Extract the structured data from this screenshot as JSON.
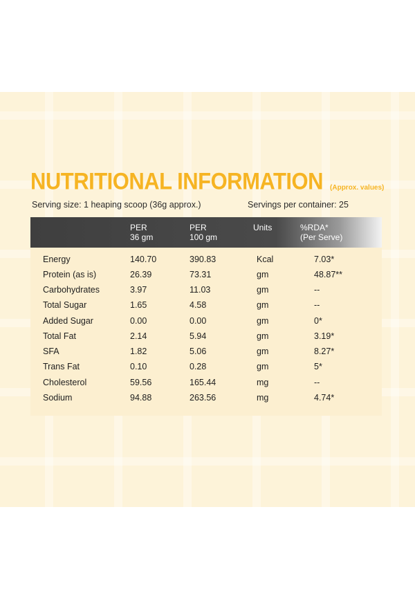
{
  "title": "NUTRITIONAL INFORMATION",
  "subtitle": "(Approx. values)",
  "serving_size": "Serving size: 1 heaping scoop (36g approx.)",
  "servings_per_container": "Servings per container: 25",
  "colors": {
    "accent": "#f6b423",
    "header_bg": "#3f3f3f",
    "panel_bg": "#fdf3d9"
  },
  "table": {
    "headers": [
      {
        "line1": "",
        "line2": ""
      },
      {
        "line1": "PER",
        "line2": "36 gm"
      },
      {
        "line1": "PER",
        "line2": "100 gm"
      },
      {
        "line1": "Units",
        "line2": ""
      },
      {
        "line1": "%RDA*",
        "line2": "(Per Serve)"
      }
    ],
    "rows": [
      [
        "Energy",
        "140.70",
        "390.83",
        "Kcal",
        "7.03*"
      ],
      [
        "Protein (as is)",
        "26.39",
        "73.31",
        "gm",
        "48.87**"
      ],
      [
        "Carbohydrates",
        "3.97",
        "11.03",
        "gm",
        "--"
      ],
      [
        "Total Sugar",
        "1.65",
        "4.58",
        "gm",
        "--"
      ],
      [
        "Added Sugar",
        "0.00",
        "0.00",
        "gm",
        "0*"
      ],
      [
        "Total Fat",
        "2.14",
        "5.94",
        "gm",
        "3.19*"
      ],
      [
        "SFA",
        "1.82",
        "5.06",
        "gm",
        "8.27*"
      ],
      [
        "Trans Fat",
        "0.10",
        "0.28",
        "gm",
        "5*"
      ],
      [
        "Cholesterol",
        "59.56",
        "165.44",
        "mg",
        "--"
      ],
      [
        "Sodium",
        "94.88",
        "263.56",
        "mg",
        "4.74*"
      ]
    ]
  }
}
